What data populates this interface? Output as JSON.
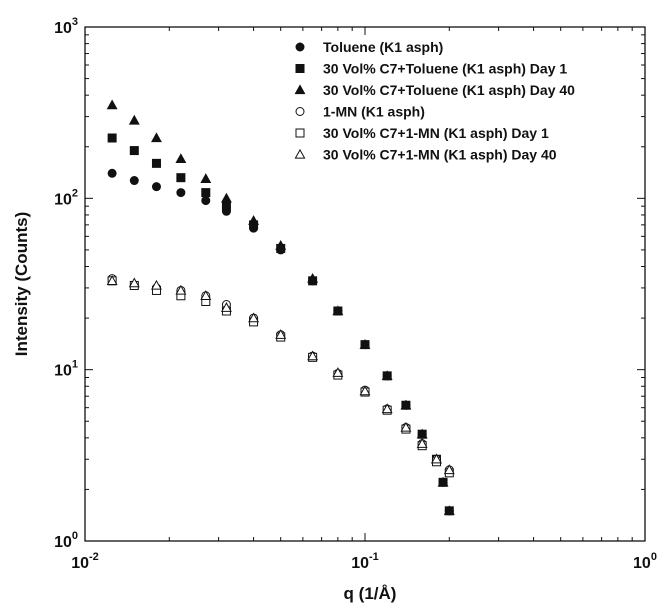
{
  "chart_data": {
    "type": "scatter",
    "xscale": "log",
    "yscale": "log",
    "xlim": [
      0.01,
      1
    ],
    "ylim": [
      1,
      1000
    ],
    "xlabel": "q (1/Å)",
    "ylabel": "Intensity (Counts)",
    "grid": false,
    "legend_position": "top-right",
    "x_ticks": [
      {
        "value": 0.01,
        "base": "10",
        "exp": "-2"
      },
      {
        "value": 0.1,
        "base": "10",
        "exp": "-1"
      },
      {
        "value": 1,
        "base": "10",
        "exp": "0"
      }
    ],
    "y_ticks": [
      {
        "value": 1,
        "base": "10",
        "exp": "0"
      },
      {
        "value": 10,
        "base": "10",
        "exp": "1"
      },
      {
        "value": 100,
        "base": "10",
        "exp": "2"
      },
      {
        "value": 1000,
        "base": "10",
        "exp": "3"
      }
    ],
    "series": [
      {
        "name": "Toluene (K1 asph)",
        "marker": "circle",
        "filled": true,
        "points": [
          [
            0.0125,
            140
          ],
          [
            0.015,
            127
          ],
          [
            0.018,
            117
          ],
          [
            0.022,
            108
          ],
          [
            0.027,
            97
          ],
          [
            0.032,
            84
          ],
          [
            0.04,
            67
          ],
          [
            0.05,
            50
          ],
          [
            0.065,
            33
          ],
          [
            0.08,
            22
          ],
          [
            0.1,
            14
          ],
          [
            0.12,
            9.2
          ],
          [
            0.14,
            6.2
          ],
          [
            0.16,
            4.2
          ],
          [
            0.18,
            3.0
          ],
          [
            0.19,
            2.2
          ],
          [
            0.2,
            1.5
          ]
        ]
      },
      {
        "name": "30 Vol% C7+Toluene (K1 asph) Day 1",
        "marker": "square",
        "filled": true,
        "points": [
          [
            0.0125,
            225
          ],
          [
            0.015,
            190
          ],
          [
            0.018,
            160
          ],
          [
            0.022,
            132
          ],
          [
            0.027,
            108
          ],
          [
            0.032,
            90
          ],
          [
            0.04,
            70
          ],
          [
            0.05,
            51
          ],
          [
            0.065,
            33
          ],
          [
            0.08,
            22
          ],
          [
            0.1,
            14
          ],
          [
            0.12,
            9.2
          ],
          [
            0.14,
            6.2
          ],
          [
            0.16,
            4.2
          ],
          [
            0.18,
            3.0
          ],
          [
            0.19,
            2.2
          ],
          [
            0.2,
            1.5
          ]
        ]
      },
      {
        "name": "30 Vol% C7+Toluene (K1 asph) Day 40",
        "marker": "triangle",
        "filled": true,
        "points": [
          [
            0.0125,
            350
          ],
          [
            0.015,
            285
          ],
          [
            0.018,
            225
          ],
          [
            0.022,
            170
          ],
          [
            0.027,
            130
          ],
          [
            0.032,
            100
          ],
          [
            0.04,
            74
          ],
          [
            0.05,
            53
          ],
          [
            0.065,
            34
          ],
          [
            0.08,
            22
          ],
          [
            0.1,
            14
          ],
          [
            0.12,
            9.2
          ],
          [
            0.14,
            6.2
          ],
          [
            0.16,
            4.2
          ],
          [
            0.18,
            3.0
          ],
          [
            0.19,
            2.2
          ],
          [
            0.2,
            1.5
          ]
        ]
      },
      {
        "name": "1-MN (K1 asph)",
        "marker": "circle",
        "filled": false,
        "points": [
          [
            0.0125,
            34
          ],
          [
            0.015,
            31
          ],
          [
            0.018,
            30
          ],
          [
            0.022,
            29
          ],
          [
            0.027,
            27
          ],
          [
            0.032,
            24
          ],
          [
            0.04,
            20
          ],
          [
            0.05,
            16
          ],
          [
            0.065,
            12
          ],
          [
            0.08,
            9.5
          ],
          [
            0.1,
            7.6
          ],
          [
            0.12,
            5.9
          ],
          [
            0.14,
            4.6
          ],
          [
            0.16,
            3.7
          ],
          [
            0.18,
            3.0
          ],
          [
            0.2,
            2.6
          ]
        ]
      },
      {
        "name": "30 Vol% C7+1-MN (K1 asph) Day 1",
        "marker": "square",
        "filled": false,
        "points": [
          [
            0.0125,
            33
          ],
          [
            0.015,
            31
          ],
          [
            0.018,
            29
          ],
          [
            0.022,
            27
          ],
          [
            0.027,
            25
          ],
          [
            0.032,
            22
          ],
          [
            0.04,
            19
          ],
          [
            0.05,
            15.5
          ],
          [
            0.065,
            11.8
          ],
          [
            0.08,
            9.3
          ],
          [
            0.1,
            7.4
          ],
          [
            0.12,
            5.8
          ],
          [
            0.14,
            4.5
          ],
          [
            0.16,
            3.6
          ],
          [
            0.18,
            2.9
          ],
          [
            0.2,
            2.5
          ]
        ]
      },
      {
        "name": "30 Vol% C7+1-MN (K1 asph) Day 40",
        "marker": "triangle",
        "filled": false,
        "points": [
          [
            0.0125,
            33
          ],
          [
            0.015,
            32
          ],
          [
            0.018,
            31
          ],
          [
            0.022,
            29
          ],
          [
            0.027,
            27
          ],
          [
            0.032,
            23
          ],
          [
            0.04,
            20
          ],
          [
            0.05,
            16
          ],
          [
            0.065,
            12
          ],
          [
            0.08,
            9.6
          ],
          [
            0.1,
            7.5
          ],
          [
            0.12,
            5.9
          ],
          [
            0.14,
            4.6
          ],
          [
            0.16,
            3.7
          ],
          [
            0.18,
            3.0
          ],
          [
            0.2,
            2.6
          ]
        ]
      }
    ]
  }
}
